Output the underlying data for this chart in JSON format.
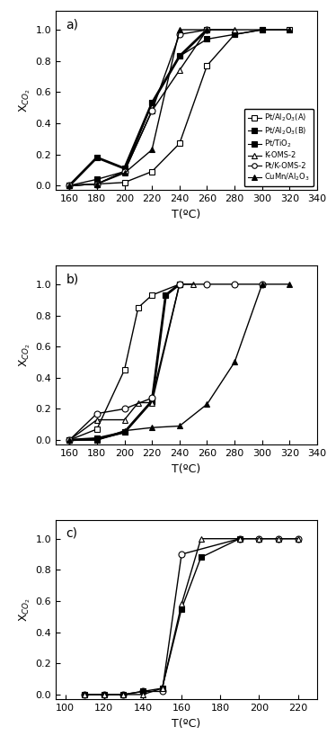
{
  "panel_a": {
    "title": "a)",
    "xlabel": "T(ºC)",
    "ylabel": "X$_{CO_2}$",
    "xlim": [
      150,
      340
    ],
    "ylim": [
      -0.03,
      1.12
    ],
    "xticks": [
      160,
      180,
      200,
      220,
      240,
      260,
      280,
      300,
      320,
      340
    ],
    "yticks": [
      0.0,
      0.2,
      0.4,
      0.6,
      0.8,
      1.0
    ],
    "series": [
      {
        "label": "Pt/Al$_2$O$_3$(A)",
        "marker": "s",
        "fillstyle": "none",
        "linewidth": 1.0,
        "x": [
          160,
          180,
          200,
          220,
          240,
          260,
          280,
          300,
          320
        ],
        "y": [
          0.0,
          0.01,
          0.02,
          0.09,
          0.27,
          0.77,
          0.97,
          1.0,
          1.0
        ]
      },
      {
        "label": "Pt/Al$_2$O$_3$(B)",
        "marker": "s",
        "fillstyle": "full",
        "linewidth": 1.0,
        "x": [
          160,
          180,
          200,
          220,
          240,
          260,
          280,
          300
        ],
        "y": [
          0.0,
          0.04,
          0.09,
          0.53,
          0.83,
          0.94,
          0.97,
          1.0
        ]
      },
      {
        "label": "Pt/TiO$_2$",
        "marker": "s",
        "fillstyle": "full",
        "linewidth": 2.0,
        "x": [
          160,
          180,
          200,
          220,
          240,
          260
        ],
        "y": [
          0.0,
          0.18,
          0.11,
          0.53,
          0.83,
          1.0
        ]
      },
      {
        "label": "K-OMS-2",
        "marker": "^",
        "fillstyle": "none",
        "linewidth": 1.0,
        "x": [
          160,
          180,
          200,
          220,
          240,
          260,
          280
        ],
        "y": [
          0.0,
          0.01,
          0.09,
          0.48,
          0.74,
          1.0,
          1.0
        ]
      },
      {
        "label": "Pt/K-OMS-2",
        "marker": "o",
        "fillstyle": "none",
        "linewidth": 1.0,
        "x": [
          160,
          180,
          200,
          220,
          240,
          260
        ],
        "y": [
          0.0,
          0.01,
          0.09,
          0.48,
          0.97,
          1.0
        ]
      },
      {
        "label": "CuMn/Al$_2$O$_3$",
        "marker": "^",
        "fillstyle": "full",
        "linewidth": 1.0,
        "x": [
          160,
          180,
          200,
          220,
          240,
          260,
          320
        ],
        "y": [
          0.0,
          0.01,
          0.08,
          0.23,
          1.0,
          1.0,
          1.0
        ]
      }
    ],
    "legend": true
  },
  "panel_b": {
    "title": "b)",
    "xlabel": "T(ºC)",
    "ylabel": "X$_{CO_2}$",
    "xlim": [
      150,
      340
    ],
    "ylim": [
      -0.03,
      1.12
    ],
    "xticks": [
      160,
      180,
      200,
      220,
      240,
      260,
      280,
      300,
      320,
      340
    ],
    "yticks": [
      0.0,
      0.2,
      0.4,
      0.6,
      0.8,
      1.0
    ],
    "series": [
      {
        "label": "Pt/Al$_2$O$_3$(A)",
        "marker": "s",
        "fillstyle": "none",
        "linewidth": 1.0,
        "x": [
          160,
          180,
          200,
          210,
          220,
          240
        ],
        "y": [
          0.0,
          0.07,
          0.45,
          0.85,
          0.93,
          1.0
        ]
      },
      {
        "label": "Pt/Al$_2$O$_3$(B)",
        "marker": "s",
        "fillstyle": "full",
        "linewidth": 2.0,
        "x": [
          160,
          180,
          200,
          220,
          230,
          240
        ],
        "y": [
          0.0,
          0.01,
          0.05,
          0.25,
          0.93,
          1.0
        ]
      },
      {
        "label": "Pt/TiO$_2$",
        "marker": "s",
        "fillstyle": "full",
        "linewidth": 1.0,
        "x": [
          160,
          180,
          200,
          220,
          230,
          240
        ],
        "y": [
          0.0,
          0.0,
          0.05,
          0.25,
          0.93,
          1.0
        ]
      },
      {
        "label": "K-OMS-2",
        "marker": "^",
        "fillstyle": "none",
        "linewidth": 1.0,
        "x": [
          160,
          180,
          200,
          210,
          220,
          240,
          250
        ],
        "y": [
          0.0,
          0.13,
          0.13,
          0.24,
          0.24,
          1.0,
          1.0
        ]
      },
      {
        "label": "Pt/K-OMS-2",
        "marker": "o",
        "fillstyle": "none",
        "linewidth": 1.0,
        "x": [
          160,
          180,
          200,
          220,
          240,
          260,
          280,
          300
        ],
        "y": [
          0.0,
          0.17,
          0.2,
          0.27,
          1.0,
          1.0,
          1.0,
          1.0
        ]
      },
      {
        "label": "CuMn/Al$_2$O$_3$",
        "marker": "^",
        "fillstyle": "full",
        "linewidth": 1.0,
        "x": [
          160,
          180,
          200,
          220,
          240,
          260,
          280,
          300,
          320
        ],
        "y": [
          0.0,
          0.0,
          0.06,
          0.08,
          0.09,
          0.23,
          0.5,
          1.0,
          1.0
        ]
      }
    ],
    "legend": false
  },
  "panel_c": {
    "title": "c)",
    "xlabel": "T(ºC)",
    "ylabel": "X$_{CO_2}$",
    "xlim": [
      95,
      230
    ],
    "ylim": [
      -0.03,
      1.12
    ],
    "xticks": [
      100,
      120,
      140,
      160,
      180,
      200,
      220
    ],
    "yticks": [
      0.0,
      0.2,
      0.4,
      0.6,
      0.8,
      1.0
    ],
    "series": [
      {
        "label": "Pt/K-OMS-2",
        "marker": "o",
        "fillstyle": "none",
        "linewidth": 1.0,
        "x": [
          110,
          120,
          130,
          140,
          150,
          160,
          190,
          200,
          210,
          220
        ],
        "y": [
          0.0,
          0.0,
          0.0,
          0.02,
          0.02,
          0.9,
          1.0,
          1.0,
          1.0,
          1.0
        ]
      },
      {
        "label": "Pt/TiO$_2$",
        "marker": "s",
        "fillstyle": "full",
        "linewidth": 1.0,
        "x": [
          110,
          120,
          130,
          140,
          150,
          160,
          170,
          190
        ],
        "y": [
          0.0,
          0.0,
          0.0,
          0.02,
          0.04,
          0.55,
          0.88,
          1.0
        ]
      },
      {
        "label": "K-OMS-2",
        "marker": "^",
        "fillstyle": "none",
        "linewidth": 1.0,
        "x": [
          110,
          120,
          130,
          140,
          150,
          160,
          170,
          190,
          200,
          210,
          220
        ],
        "y": [
          0.0,
          0.0,
          0.0,
          0.0,
          0.04,
          0.58,
          1.0,
          1.0,
          1.0,
          1.0,
          1.0
        ]
      }
    ],
    "legend": false
  }
}
